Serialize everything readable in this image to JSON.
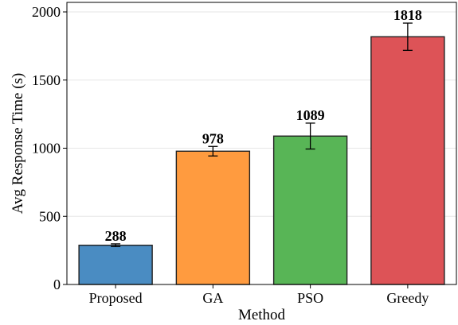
{
  "chart_data": {
    "type": "bar",
    "title": "",
    "xlabel": "Method",
    "ylabel": "Avg Response Time (s)",
    "categories": [
      "Proposed",
      "GA",
      "PSO",
      "Greedy"
    ],
    "values": [
      288,
      978,
      1089,
      1818
    ],
    "value_labels": [
      "288",
      "978",
      "1089",
      "1818"
    ],
    "errors": [
      10,
      35,
      95,
      100
    ],
    "colors": [
      "#4a8cc2",
      "#ff9b3f",
      "#58b556",
      "#dd5357"
    ],
    "ylim": [
      0,
      2070
    ],
    "yticks": [
      0,
      500,
      1000,
      1500,
      2000
    ],
    "ytick_labels": [
      "0",
      "500",
      "1000",
      "1500",
      "2000"
    ],
    "grid": true,
    "legend": false
  }
}
